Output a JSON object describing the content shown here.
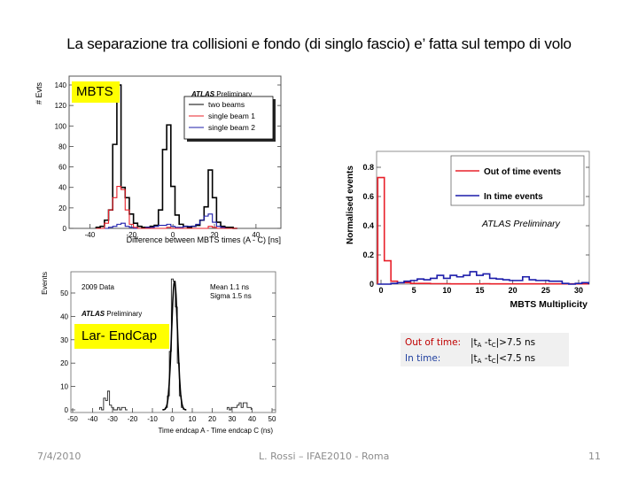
{
  "slide": {
    "title": "La separazione tra collisioni e fondo (di singlo fascio) e’ fatta  sul tempo di volo",
    "footer": {
      "date": "7/4/2010",
      "center": "L. Rossi – IFAE2010 - Roma",
      "page": "11"
    },
    "labels": {
      "mbts": "MBTS",
      "lar": "Lar- EndCap"
    },
    "note": {
      "out_label": "Out of time:",
      "out_expr_prefix": "|t",
      "out_sub_a": "A",
      "out_mid": " -t",
      "out_sub_c": "C",
      "out_expr_suffix": "|>7.5 ns",
      "in_label": "In time:",
      "in_expr_prefix": "|t",
      "in_sub_a": "A",
      "in_mid": " -t",
      "in_sub_c": "C",
      "in_expr_suffix": "|<7.5 ns"
    },
    "colors": {
      "highlight": "#ffff00",
      "red_series": "#e8202a",
      "blue_series": "#1c1caa",
      "out_of_time_text": "#c00000"
    }
  },
  "chart_data": [
    {
      "type": "bar",
      "subtype": "histogram-step",
      "title": "ATLAS Preliminary",
      "xlabel": "Difference between MBTS times (A - C) [ns]",
      "ylabel": "# Evts",
      "xlim": [
        -50,
        52
      ],
      "ylim": [
        0,
        145
      ],
      "xticks": [
        -40,
        -20,
        0,
        20,
        40
      ],
      "yticks": [
        0,
        20,
        40,
        60,
        80,
        100,
        120,
        140
      ],
      "legend": [
        "two beams",
        "single beam 1",
        "single beam 2"
      ],
      "legend_position": "upper right",
      "bin_width": 2,
      "x": [
        -36,
        -34,
        -32,
        -30,
        -28,
        -26,
        -24,
        -22,
        -20,
        -18,
        -16,
        -14,
        -12,
        -10,
        -8,
        -6,
        -4,
        -2,
        0,
        2,
        4,
        6,
        8,
        10,
        12,
        14,
        16,
        18,
        20,
        22,
        24,
        26,
        28,
        30
      ],
      "series": [
        {
          "name": "two beams",
          "color": "#000000",
          "values": [
            1,
            2,
            8,
            18,
            82,
            140,
            40,
            30,
            14,
            5,
            2,
            1,
            1,
            2,
            3,
            18,
            77,
            101,
            41,
            13,
            4,
            2,
            1,
            2,
            3,
            8,
            21,
            57,
            30,
            6,
            2,
            1,
            1,
            0
          ]
        },
        {
          "name": "single beam 1",
          "color": "#e8202a",
          "values": [
            0,
            0,
            5,
            18,
            30,
            41,
            38,
            18,
            4,
            1,
            0,
            0,
            0,
            0,
            0,
            0,
            0,
            1,
            0,
            0,
            0,
            0,
            0,
            0,
            0,
            0,
            0,
            2,
            1,
            0,
            0,
            0,
            0,
            0
          ]
        },
        {
          "name": "single beam 2",
          "color": "#1c1caa",
          "values": [
            0,
            0,
            0,
            1,
            2,
            4,
            5,
            2,
            1,
            0,
            0,
            0,
            1,
            1,
            2,
            3,
            3,
            4,
            2,
            1,
            1,
            2,
            2,
            2,
            4,
            8,
            12,
            14,
            6,
            2,
            1,
            0,
            0,
            0
          ]
        }
      ],
      "annotation": "MBTS"
    },
    {
      "type": "line",
      "subtype": "histogram-step",
      "title": "ATLAS Preliminary",
      "xlabel": "MBTS Multiplicity",
      "ylabel": "Normalised events",
      "xlim": [
        -0.5,
        31.5
      ],
      "ylim": [
        0,
        0.9
      ],
      "xticks": [
        0,
        5,
        10,
        15,
        20,
        25,
        30
      ],
      "yticks": [
        0,
        0.2,
        0.4,
        0.6,
        0.8
      ],
      "legend": [
        "Out of time events",
        "In time events"
      ],
      "legend_position": "upper right",
      "x": [
        0,
        1,
        2,
        3,
        4,
        5,
        6,
        7,
        8,
        9,
        10,
        11,
        12,
        13,
        14,
        15,
        16,
        17,
        18,
        19,
        20,
        21,
        22,
        23,
        24,
        25,
        26,
        27,
        28,
        29,
        30,
        31
      ],
      "series": [
        {
          "name": "Out of time events",
          "color": "#e8202a",
          "values": [
            0.73,
            0.16,
            0.02,
            0.01,
            0.01,
            0.005,
            0.005,
            0.005,
            0.003,
            0.003,
            0.003,
            0.002,
            0.002,
            0.002,
            0.002,
            0.002,
            0.003,
            0.002,
            0.002,
            0.002,
            0.002,
            0.002,
            0.002,
            0.002,
            0.002,
            0.002,
            0.002,
            0.002,
            0.002,
            0.002,
            0.002,
            0.002
          ]
        },
        {
          "name": "In time events",
          "color": "#1c1caa",
          "values": [
            0.0,
            0.0,
            0.005,
            0.01,
            0.02,
            0.025,
            0.035,
            0.03,
            0.04,
            0.06,
            0.04,
            0.06,
            0.05,
            0.06,
            0.085,
            0.06,
            0.07,
            0.04,
            0.035,
            0.03,
            0.025,
            0.025,
            0.05,
            0.03,
            0.025,
            0.025,
            0.02,
            0.02,
            0.005,
            0.0,
            0.005,
            0.01
          ]
        }
      ],
      "annotation": "ATLAS Preliminary"
    },
    {
      "type": "line",
      "subtype": "histogram-with-fit",
      "title": "ATLAS Preliminary",
      "subtitle": "2009 Data",
      "xlabel": "Time endcap A - Time endcap C (ns)",
      "ylabel": "Events",
      "xlim": [
        -50,
        50
      ],
      "ylim": [
        0,
        58
      ],
      "xticks": [
        -50,
        -40,
        -30,
        -20,
        -10,
        0,
        10,
        20,
        30,
        40,
        50
      ],
      "yticks": [
        0,
        10,
        20,
        30,
        40,
        50
      ],
      "stats": {
        "Mean": "1.1 ns",
        "Sigma": "1.5 ns"
      },
      "bin_width": 1,
      "x": [
        -36,
        -35,
        -34,
        -33,
        -32,
        -31,
        -30,
        -29,
        -28,
        -27,
        -26,
        -25,
        -24,
        -23,
        -3,
        -2,
        -1,
        0,
        1,
        2,
        3,
        4,
        5,
        28,
        29,
        30,
        31,
        32,
        33,
        34,
        35,
        36,
        37,
        38,
        39
      ],
      "series": [
        {
          "name": "2009 Data",
          "color": "#000000",
          "values": [
            1,
            0,
            5,
            4,
            8,
            2,
            1,
            0,
            0,
            1,
            0,
            1,
            1,
            0,
            1,
            6,
            25,
            56,
            55,
            44,
            20,
            6,
            1,
            1,
            0,
            1,
            1,
            1,
            2,
            3,
            1,
            3,
            3,
            1,
            1
          ]
        },
        {
          "name": "Gaussian fit",
          "color": "#000000",
          "mean": 1.1,
          "sigma": 1.5,
          "peak": 55
        }
      ],
      "annotation": "Lar- EndCap"
    }
  ]
}
